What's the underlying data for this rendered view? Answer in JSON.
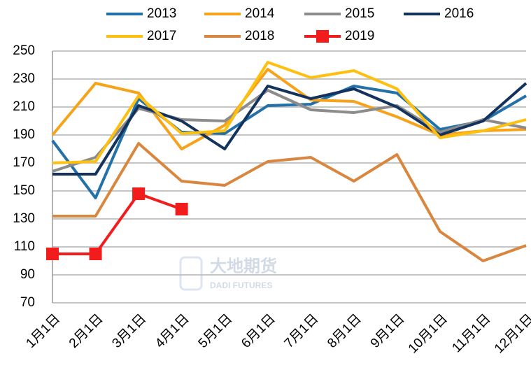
{
  "chart_data": {
    "type": "line",
    "categories": [
      "1月1日",
      "2月1日",
      "3月1日",
      "4月1日",
      "5月1日",
      "6月1日",
      "7月1日",
      "8月1日",
      "9月1日",
      "10月1日",
      "11月1日",
      "12月1日"
    ],
    "series": [
      {
        "name": "2013",
        "color": "#2271a8",
        "values": [
          186,
          145,
          216,
          192,
          191,
          211,
          212,
          225,
          220,
          194,
          200,
          218
        ]
      },
      {
        "name": "2014",
        "color": "#f7a21b",
        "values": [
          190,
          227,
          220,
          180,
          197,
          237,
          215,
          214,
          203,
          190,
          193,
          194
        ]
      },
      {
        "name": "2015",
        "color": "#8c8c8c",
        "values": [
          164,
          174,
          209,
          201,
          200,
          222,
          208,
          206,
          211,
          192,
          201,
          195
        ]
      },
      {
        "name": "2016",
        "color": "#13335e",
        "values": [
          162,
          162,
          211,
          200,
          180,
          225,
          216,
          223,
          210,
          190,
          200,
          227
        ]
      },
      {
        "name": "2017",
        "color": "#fdc010",
        "values": [
          170,
          171,
          218,
          191,
          193,
          242,
          231,
          236,
          223,
          188,
          193,
          201
        ]
      },
      {
        "name": "2018",
        "color": "#d9873f",
        "values": [
          132,
          132,
          184,
          157,
          154,
          171,
          174,
          157,
          176,
          121,
          100,
          111
        ]
      },
      {
        "name": "2019",
        "color": "#f21c1c",
        "marker": "square",
        "values": [
          105,
          105,
          148,
          137,
          null,
          null,
          null,
          null,
          null,
          null,
          null,
          null
        ]
      }
    ],
    "ylim": [
      70,
      250
    ],
    "yticks": [
      70,
      90,
      110,
      130,
      150,
      170,
      190,
      210,
      230,
      250
    ],
    "grid": true,
    "legend": "top",
    "watermark": {
      "title": "大地期货",
      "subtitle": "DADI FUTURES"
    }
  }
}
